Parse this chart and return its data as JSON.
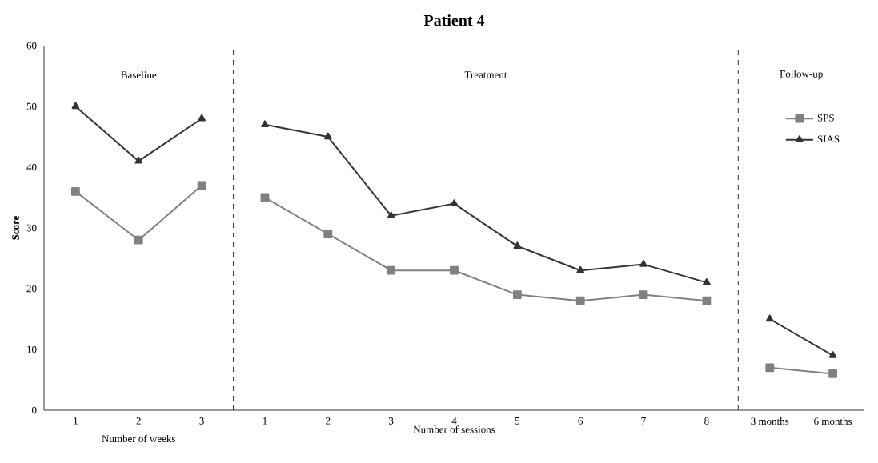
{
  "chart_data": {
    "type": "line",
    "title": "Patient 4",
    "ylabel": "Score",
    "xlabel": "Number of sessions",
    "categories": [
      "1",
      "2",
      "3",
      "1",
      "2",
      "3",
      "4",
      "5",
      "6",
      "7",
      "8",
      "3 months",
      "6 months"
    ],
    "series": [
      {
        "name": "SPS",
        "color": "#808080",
        "marker": "square",
        "values": [
          36,
          28,
          37,
          35,
          29,
          23,
          23,
          19,
          18,
          19,
          18,
          7,
          6
        ]
      },
      {
        "name": "SIAS",
        "color": "#333333",
        "marker": "triangle",
        "values": [
          50,
          41,
          48,
          47,
          45,
          32,
          34,
          27,
          23,
          24,
          21,
          15,
          9
        ]
      }
    ],
    "ylim": [
      0,
      60
    ],
    "yticks": [
      0,
      10,
      20,
      30,
      40,
      50,
      60
    ],
    "annotations": [
      "Baseline",
      "Treatment",
      "Follow-up",
      "Number of weeks"
    ],
    "legend": "top right",
    "grid": false,
    "line_style": "solid"
  }
}
